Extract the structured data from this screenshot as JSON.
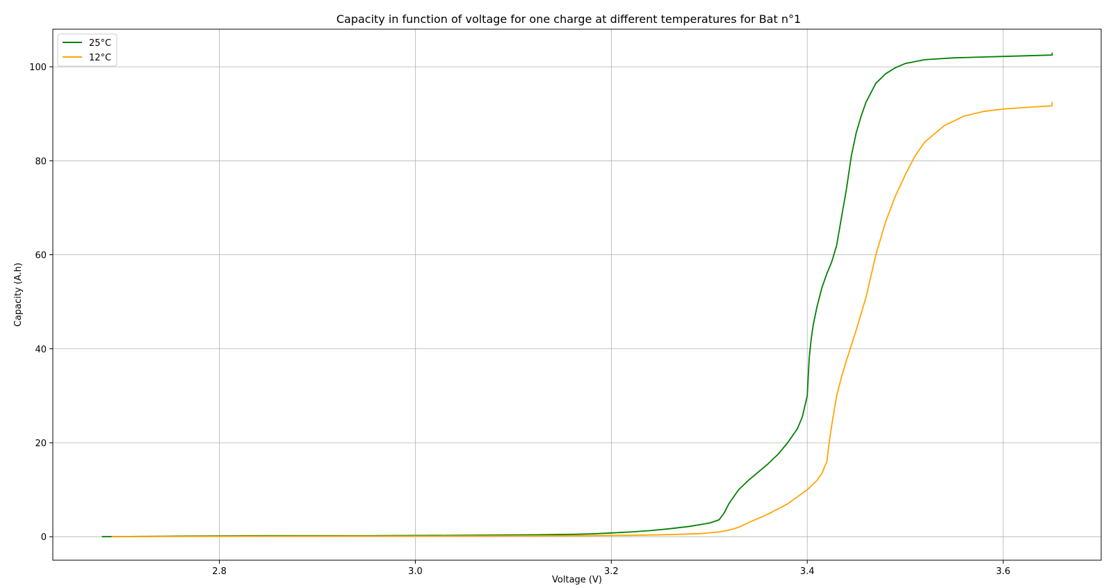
{
  "chart_data": {
    "type": "line",
    "title": "Capacity in function of voltage for one charge at different temperatures for Bat n°1",
    "xlabel": "Voltage (V)",
    "ylabel": "Capacity (A.h)",
    "xlim": [
      2.63,
      3.7
    ],
    "ylim": [
      -5,
      108
    ],
    "xticks": [
      2.8,
      3.0,
      3.2,
      3.4,
      3.6
    ],
    "xtick_labels": [
      "2.8",
      "3.0",
      "3.2",
      "3.4",
      "3.6"
    ],
    "yticks": [
      0,
      20,
      40,
      60,
      80,
      100
    ],
    "ytick_labels": [
      "0",
      "20",
      "40",
      "60",
      "80",
      "100"
    ],
    "grid": true,
    "legend_position": "upper-left",
    "series": [
      {
        "name": "25°C",
        "color": "#008000",
        "x": [
          2.68,
          2.75,
          2.85,
          2.95,
          3.05,
          3.12,
          3.16,
          3.18,
          3.2,
          3.22,
          3.24,
          3.26,
          3.28,
          3.3,
          3.31,
          3.315,
          3.32,
          3.33,
          3.34,
          3.36,
          3.37,
          3.38,
          3.39,
          3.395,
          3.4,
          3.402,
          3.404,
          3.406,
          3.41,
          3.415,
          3.42,
          3.425,
          3.43,
          3.435,
          3.44,
          3.445,
          3.45,
          3.455,
          3.46,
          3.47,
          3.48,
          3.49,
          3.5,
          3.52,
          3.55,
          3.6,
          3.65,
          3.65
        ],
        "y": [
          0,
          0.1,
          0.2,
          0.2,
          0.3,
          0.4,
          0.5,
          0.6,
          0.8,
          1.0,
          1.3,
          1.7,
          2.2,
          2.9,
          3.6,
          5.0,
          7.0,
          10.0,
          12.0,
          15.5,
          17.5,
          20.0,
          23.0,
          25.5,
          30.0,
          38.0,
          42.0,
          45.0,
          49.0,
          53.0,
          56.0,
          58.5,
          62.0,
          68.0,
          74.0,
          81.0,
          86.0,
          89.5,
          92.5,
          96.5,
          98.5,
          99.8,
          100.7,
          101.5,
          101.9,
          102.2,
          102.5,
          103.0
        ]
      },
      {
        "name": "12°C",
        "color": "#FFA500",
        "x": [
          2.69,
          2.75,
          2.85,
          2.95,
          3.05,
          3.15,
          3.22,
          3.26,
          3.29,
          3.31,
          3.32,
          3.33,
          3.34,
          3.36,
          3.38,
          3.39,
          3.4,
          3.41,
          3.415,
          3.42,
          3.423,
          3.426,
          3.43,
          3.435,
          3.44,
          3.45,
          3.46,
          3.47,
          3.48,
          3.49,
          3.5,
          3.51,
          3.52,
          3.54,
          3.56,
          3.58,
          3.6,
          3.62,
          3.65,
          3.65
        ],
        "y": [
          0,
          0.05,
          0.1,
          0.12,
          0.15,
          0.2,
          0.3,
          0.45,
          0.65,
          1.0,
          1.4,
          2.0,
          3.0,
          4.8,
          7.0,
          8.5,
          10.0,
          12.0,
          13.5,
          16.0,
          21.0,
          25.0,
          30.0,
          34.0,
          37.5,
          44.0,
          51.0,
          60.0,
          67.0,
          72.5,
          77.0,
          81.0,
          84.0,
          87.5,
          89.5,
          90.5,
          91.0,
          91.3,
          91.7,
          92.5
        ]
      }
    ]
  }
}
